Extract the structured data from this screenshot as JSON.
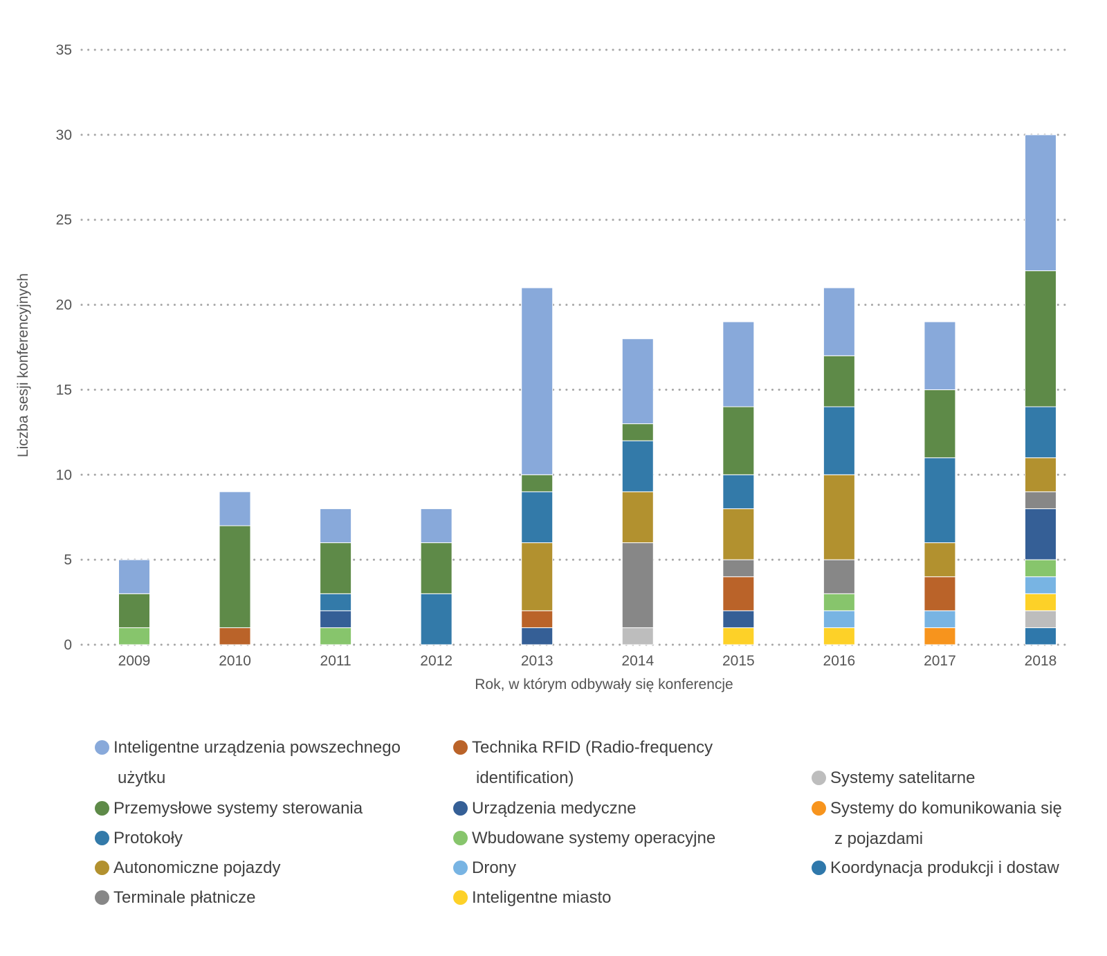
{
  "chart_data": {
    "type": "bar",
    "stacked": true,
    "title": "",
    "xlabel": "Rok, w którym odbywały się konferencje",
    "ylabel": "Liczba sesji konferencyjnych",
    "ylim": [
      0,
      35
    ],
    "yticks": [
      0,
      5,
      10,
      15,
      20,
      25,
      30,
      35
    ],
    "grid": true,
    "legend_position": "bottom",
    "categories": [
      "2009",
      "2010",
      "2011",
      "2012",
      "2013",
      "2014",
      "2015",
      "2016",
      "2017",
      "2018"
    ],
    "series": [
      {
        "name": "Koordynacja produkcji i dostaw",
        "color": "#2f78ab",
        "values": [
          0,
          0,
          0,
          0,
          0,
          0,
          0,
          0,
          0,
          1
        ]
      },
      {
        "name": "Systemy satelitarne",
        "color": "#bdbdbd",
        "values": [
          0,
          0,
          0,
          0,
          0,
          1,
          0,
          0,
          0,
          1
        ]
      },
      {
        "name": "Inteligentne miasto",
        "color": "#fdd128",
        "values": [
          0,
          0,
          0,
          0,
          0,
          0,
          1,
          1,
          0,
          1
        ]
      },
      {
        "name": "Systemy do komunikowania się z pojazdami",
        "color": "#f7941d",
        "values": [
          0,
          0,
          0,
          0,
          0,
          0,
          0,
          0,
          1,
          0
        ]
      },
      {
        "name": "Drony",
        "color": "#78b4e3",
        "values": [
          0,
          0,
          0,
          0,
          0,
          0,
          0,
          1,
          1,
          1
        ]
      },
      {
        "name": "Wbudowane systemy operacyjne",
        "color": "#87c56c",
        "values": [
          1,
          0,
          1,
          0,
          0,
          0,
          0,
          1,
          0,
          1
        ]
      },
      {
        "name": "Urządzenia medyczne",
        "color": "#355f96",
        "values": [
          0,
          0,
          1,
          0,
          1,
          0,
          1,
          0,
          0,
          3
        ]
      },
      {
        "name": "Technika RFID (Radio-frequency identification)",
        "color": "#ba6329",
        "values": [
          0,
          1,
          0,
          0,
          1,
          0,
          2,
          0,
          2,
          0
        ]
      },
      {
        "name": "Terminale płatnicze",
        "color": "#878787",
        "values": [
          0,
          0,
          0,
          0,
          0,
          5,
          1,
          2,
          0,
          1
        ]
      },
      {
        "name": "Autonomiczne pojazdy",
        "color": "#b2912f",
        "values": [
          0,
          0,
          0,
          0,
          4,
          3,
          3,
          5,
          2,
          2
        ]
      },
      {
        "name": "Protokoły",
        "color": "#337aa9",
        "values": [
          0,
          0,
          1,
          3,
          3,
          3,
          2,
          4,
          5,
          3
        ]
      },
      {
        "name": "Przemysłowe systemy sterowania",
        "color": "#5e8a48",
        "values": [
          2,
          6,
          3,
          3,
          1,
          1,
          4,
          3,
          4,
          8
        ]
      },
      {
        "name": "Inteligentne urządzenia powszechnego użytku",
        "color": "#88a9da",
        "values": [
          2,
          2,
          2,
          2,
          11,
          5,
          5,
          4,
          4,
          8
        ]
      }
    ]
  },
  "legend": {
    "col1": [
      {
        "line1": "Inteligentne urządzenia powszechnego",
        "line2": "użytku",
        "color": "#88a9da"
      },
      {
        "line1": "Przemysłowe systemy sterowania",
        "line2": "",
        "color": "#5e8a48"
      },
      {
        "line1": "Protokoły",
        "line2": "",
        "color": "#337aa9"
      },
      {
        "line1": "Autonomiczne pojazdy",
        "line2": "",
        "color": "#b2912f"
      },
      {
        "line1": "Terminale płatnicze",
        "line2": "",
        "color": "#878787"
      }
    ],
    "col2": [
      {
        "line1": "Technika RFID (Radio-frequency",
        "line2": "identification)",
        "color": "#ba6329"
      },
      {
        "line1": "Urządzenia medyczne",
        "line2": "",
        "color": "#355f96"
      },
      {
        "line1": "Wbudowane systemy operacyjne",
        "line2": "",
        "color": "#87c56c"
      },
      {
        "line1": "Drony",
        "line2": "",
        "color": "#78b4e3"
      },
      {
        "line1": "Inteligentne miasto",
        "line2": "",
        "color": "#fdd128"
      }
    ],
    "col3": [
      {
        "line1": "Systemy satelitarne",
        "line2": "",
        "color": "#bdbdbd"
      },
      {
        "line1": "Systemy do komunikowania się",
        "line2": "z pojazdami",
        "color": "#f7941d"
      },
      {
        "line1": "Koordynacja produkcji i dostaw",
        "line2": "",
        "color": "#2f78ab"
      }
    ]
  }
}
